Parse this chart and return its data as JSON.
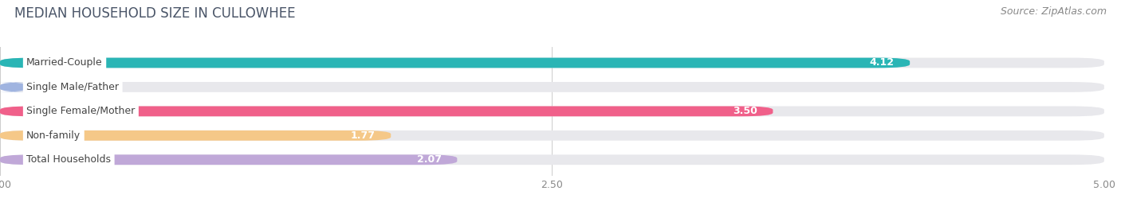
{
  "title": "MEDIAN HOUSEHOLD SIZE IN CULLOWHEE",
  "source": "Source: ZipAtlas.com",
  "categories": [
    "Married-Couple",
    "Single Male/Father",
    "Single Female/Mother",
    "Non-family",
    "Total Households"
  ],
  "values": [
    4.12,
    0.0,
    3.5,
    1.77,
    2.07
  ],
  "bar_colors": [
    "#2ab5b5",
    "#a0b4e0",
    "#f0608a",
    "#f5c888",
    "#c0a8d8"
  ],
  "bar_bg_color": "#e8e8ec",
  "xlim_max": 5.0,
  "xticks": [
    0.0,
    2.5,
    5.0
  ],
  "xtick_labels": [
    "0.00",
    "2.50",
    "5.00"
  ],
  "title_fontsize": 12,
  "source_fontsize": 9,
  "bar_height": 0.42,
  "bar_label_fontsize": 9,
  "cat_label_fontsize": 9,
  "background_color": "#ffffff",
  "fig_width": 14.06,
  "fig_height": 2.69,
  "title_color": "#4a5568",
  "source_color": "#888888",
  "tick_color": "#888888"
}
